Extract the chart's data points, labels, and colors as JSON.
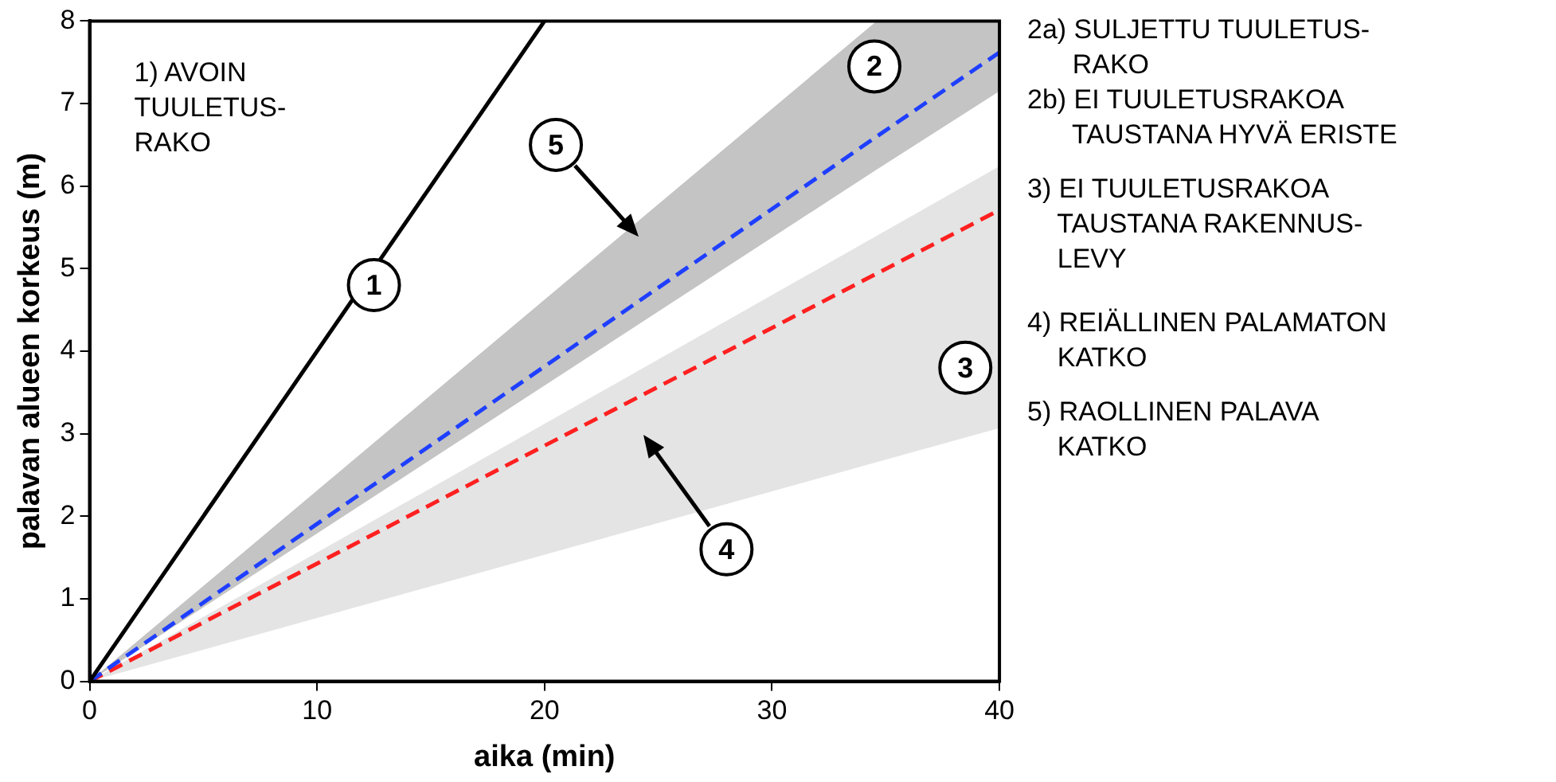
{
  "chart_data": {
    "type": "line",
    "xlabel": "aika (min)",
    "ylabel": "palavan alueen korkeus (m)",
    "xlim": [
      0,
      40
    ],
    "xticks": [
      0,
      10,
      20,
      30,
      40
    ],
    "ylim": [
      0,
      8
    ],
    "yticks": [
      0,
      1,
      2,
      3,
      4,
      5,
      6,
      7,
      8
    ],
    "grid": false,
    "marker": "none",
    "series": [
      {
        "color": "#000000",
        "line_style": "solid",
        "x": [
          0,
          20
        ],
        "values": [
          0,
          8
        ]
      },
      {
        "color": "#1f3fff",
        "line_style": "dashed",
        "x": [
          0,
          34.6,
          40
        ],
        "values": [
          0,
          6.6,
          7.62
        ],
        "lower": [
          0,
          6.2,
          7.15
        ],
        "upper": [
          0,
          8,
          8
        ]
      },
      {
        "color": "#ff2020",
        "line_style": "dashed",
        "x": [
          0,
          40
        ],
        "values": [
          0,
          5.71
        ],
        "lower": [
          0,
          3.07
        ],
        "upper": [
          0,
          6.24
        ]
      }
    ],
    "annotations": [
      "1) AVOIN\nTUULETUS-\nRAKO",
      "2a) SULJETTU TUULETUS-\n      RAKO\n2b) EI TUULETUSRAKOA\n      TAUSTANA HYVÄ ERISTE",
      "3) EI TUULETUSRAKOA\n    TAUSTANA RAKENNUS-\n    LEVY",
      "4) REIÄLLINEN PALAMATON\n    KATKO",
      "5) RAOLLINEN PALAVA\n    KATKO",
      {
        "text": "1",
        "x": 12.5,
        "y": 4.8
      },
      {
        "text": "2",
        "x": 34.5,
        "y": 7.45
      },
      {
        "text": "3",
        "x": 38.5,
        "y": 3.8
      },
      {
        "text": "4",
        "x": 28,
        "y": 1.6
      },
      {
        "text": "5",
        "x": 20.5,
        "y": 6.5
      }
    ]
  }
}
